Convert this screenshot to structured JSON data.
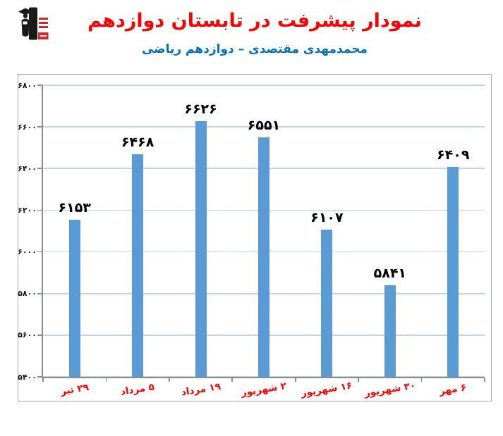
{
  "header": {
    "title": "نمودار پیشرفت در تابستان دوازدهم",
    "subtitle": "محمدمهدی مقتصدی – دوازدهم ریاضی",
    "logo": "kanoon-graduate-logo"
  },
  "chart_data": {
    "type": "bar",
    "title": "نمودار پیشرفت در تابستان دوازدهم",
    "subtitle": "محمدمهدی مقتصدی – دوازدهم ریاضی",
    "categories": [
      "۲۹ تیر",
      "۵ مرداد",
      "۱۹ مرداد",
      "۲ شهریور",
      "۱۶ شهریور",
      "۳۰ شهریور",
      "۶ مهر"
    ],
    "values": [
      6153,
      6468,
      6626,
      6551,
      6107,
      5841,
      6409
    ],
    "value_labels": [
      "۶۱۵۳",
      "۶۴۶۸",
      "۶۶۲۶",
      "۶۵۵۱",
      "۶۱۰۷",
      "۵۸۴۱",
      "۶۴۰۹"
    ],
    "ylim": [
      5400,
      6800
    ],
    "y_tick_step": 200,
    "y_ticks": [
      {
        "value": 5400,
        "label": "۵۴۰۰"
      },
      {
        "value": 5600,
        "label": "۵۶۰۰"
      },
      {
        "value": 5800,
        "label": "۵۸۰۰"
      },
      {
        "value": 6000,
        "label": "۶۰۰۰"
      },
      {
        "value": 6200,
        "label": "۶۲۰۰"
      },
      {
        "value": 6400,
        "label": "۶۴۰۰"
      },
      {
        "value": 6600,
        "label": "۶۶۰۰"
      },
      {
        "value": 6800,
        "label": "۶۸۰۰"
      }
    ],
    "grid": true,
    "legend": false,
    "xlabel": "",
    "ylabel": ""
  },
  "colors": {
    "title": "#fe0000",
    "subtitle": "#0070c0",
    "bar": "#5b9bd5",
    "gridline": "#bdd4ee",
    "axis": "#8c8c8c",
    "category_label": "#ff0000",
    "value_label": "#000000",
    "frame_border": "#a6a6a6"
  }
}
